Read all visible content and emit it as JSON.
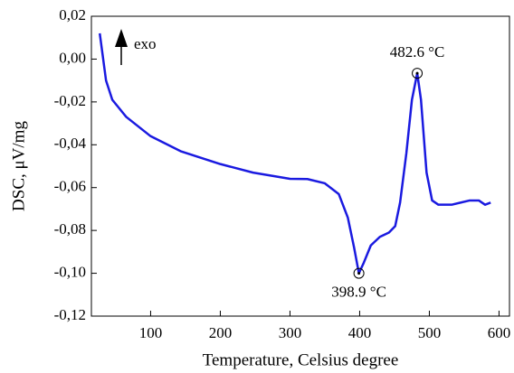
{
  "chart_data": {
    "type": "line",
    "x_label": "Temperature,  Celsius degree",
    "y_label": "DSC, μV/mg",
    "exo_label": "exo",
    "xlim": [
      15,
      615
    ],
    "ylim": [
      -0.12,
      0.02
    ],
    "xticks": [
      100,
      200,
      300,
      400,
      500,
      600
    ],
    "yticks": [
      {
        "value": 0.02,
        "label": "0,02"
      },
      {
        "value": 0,
        "label": "0,00"
      },
      {
        "value": -0.02,
        "label": "-0,02"
      },
      {
        "value": -0.04,
        "label": "-0,04"
      },
      {
        "value": -0.06,
        "label": "-0,06"
      },
      {
        "value": -0.08,
        "label": "-0,08"
      },
      {
        "value": -0.1,
        "label": "-0,10"
      },
      {
        "value": -0.12,
        "label": "-0,12"
      }
    ],
    "series": [
      {
        "color": "#1a1ae0",
        "x": [
          27,
          36,
          45,
          65,
          100,
          143,
          200,
          247,
          300,
          325,
          350,
          370,
          383,
          392,
          398.9,
          406,
          416,
          429,
          442,
          451,
          458,
          467,
          475,
          482.6,
          488,
          496,
          504,
          513,
          532,
          558,
          571,
          580,
          588
        ],
        "values": [
          0.012,
          -0.01,
          -0.019,
          -0.027,
          -0.036,
          -0.043,
          -0.049,
          -0.053,
          -0.0559,
          -0.056,
          -0.058,
          -0.063,
          -0.074,
          -0.088,
          -0.1,
          -0.095,
          -0.087,
          -0.083,
          -0.081,
          -0.078,
          -0.067,
          -0.044,
          -0.019,
          -0.0066,
          -0.019,
          -0.053,
          -0.066,
          -0.068,
          -0.068,
          -0.066,
          -0.066,
          -0.068,
          -0.067
        ]
      }
    ],
    "annotations": [
      {
        "text": "482.6 °C",
        "x": 482.6,
        "y": -0.0066,
        "pos": "above"
      },
      {
        "text": "398.9 °C",
        "x": 398.9,
        "y": -0.1,
        "pos": "below"
      }
    ]
  }
}
